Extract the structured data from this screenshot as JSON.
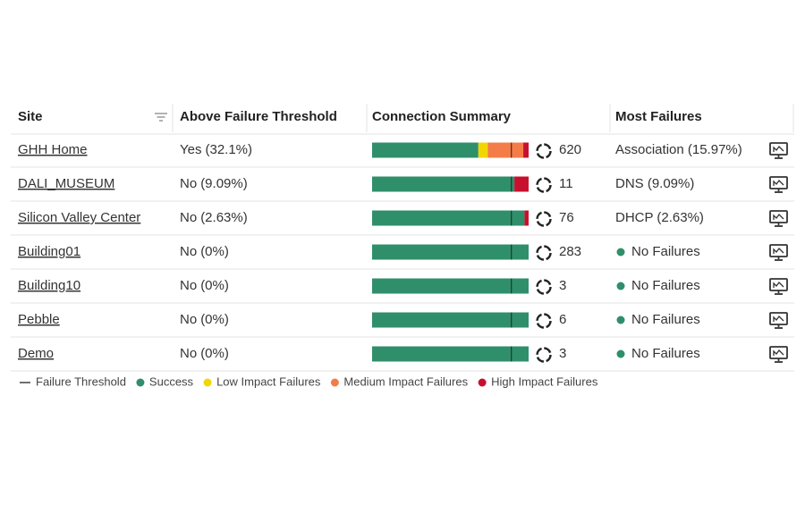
{
  "table": {
    "columns": [
      "Site",
      "Above Failure Threshold",
      "Connection Summary",
      "Most Failures"
    ],
    "threshold": 89,
    "rows": [
      {
        "site": "GHH Home",
        "status": "Yes",
        "status_color": "#c8102e",
        "detail": "(32.1%)",
        "bar": [
          67.9,
          6,
          22.7,
          3.4
        ],
        "count": 620,
        "most_failures": "Association (15.97%)"
      },
      {
        "site": "DALI_MUSEUM",
        "status": "No",
        "detail": "(9.09%)",
        "bar": [
          90.91,
          0,
          0,
          9.09
        ],
        "count": 11,
        "most_failures": "DNS (9.09%)"
      },
      {
        "site": "Silicon Valley Center",
        "status": "No",
        "detail": "(2.63%)",
        "bar": [
          97.37,
          0,
          0,
          2.63
        ],
        "count": 76,
        "most_failures": "DHCP (2.63%)"
      },
      {
        "site": "Building01",
        "status": "No",
        "detail": "(0%)",
        "bar": [
          100,
          0,
          0,
          0
        ],
        "count": 283,
        "most_failures": "No Failures",
        "failure_dot": "#2f8f6b"
      },
      {
        "site": "Building10",
        "status": "No",
        "detail": "(0%)",
        "bar": [
          100,
          0,
          0,
          0
        ],
        "count": 3,
        "most_failures": "No Failures",
        "failure_dot": "#2f8f6b"
      },
      {
        "site": "Pebble",
        "status": "No",
        "detail": "(0%)",
        "bar": [
          100,
          0,
          0,
          0
        ],
        "count": 6,
        "most_failures": "No Failures",
        "failure_dot": "#2f8f6b"
      },
      {
        "site": "Demo",
        "status": "No",
        "detail": "(0%)",
        "bar": [
          100,
          0,
          0,
          0
        ],
        "count": 3,
        "most_failures": "No Failures",
        "failure_dot": "#2f8f6b"
      }
    ]
  },
  "legend": {
    "threshold_label": "Failure Threshold",
    "segments": [
      {
        "label": "Success",
        "color": "#2f8f6b"
      },
      {
        "label": "Low Impact Failures",
        "color": "#f2d600"
      },
      {
        "label": "Medium Impact Failures",
        "color": "#f47c48"
      },
      {
        "label": "High Impact Failures",
        "color": "#c8102e"
      }
    ]
  }
}
